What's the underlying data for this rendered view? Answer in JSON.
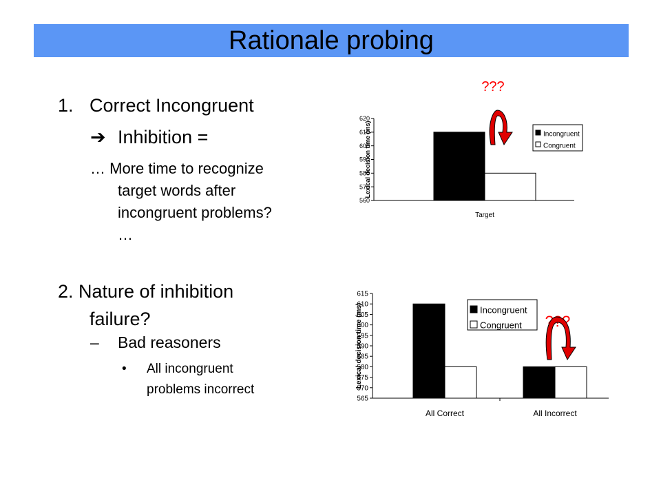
{
  "slide": {
    "title": "Rationale probing",
    "point1": {
      "number": "1.",
      "heading": "Correct Incongruent",
      "arrow": "➔",
      "subheading": "Inhibition =",
      "detail_lines": [
        "… More time to recognize",
        "target words after",
        "incongruent problems?",
        "…"
      ]
    },
    "point2": {
      "heading_lines": [
        "2. Nature of inhibition",
        "failure?"
      ],
      "dash": "–",
      "sub": "Bad reasoners",
      "bullet": "•",
      "bullet_lines": [
        "All incongruent",
        "problems incorrect"
      ]
    }
  },
  "colors": {
    "title_bar": "#5b96f5",
    "annotation": "#ff0000",
    "arrow_fill": "#e00000",
    "incongruent": "#000000",
    "congruent": "#ffffff"
  },
  "chart_data": [
    {
      "type": "bar",
      "categories": [
        "Target"
      ],
      "series": [
        {
          "name": "Incongruent",
          "values": [
            610
          ]
        },
        {
          "name": "Congruent",
          "values": [
            580
          ]
        }
      ],
      "ylabel": "Lexical decision time (ms)",
      "ylim": [
        560,
        620
      ],
      "yticks": [
        560,
        570,
        580,
        590,
        600,
        610,
        620
      ],
      "legend": "right",
      "annotation": "???"
    },
    {
      "type": "bar",
      "categories": [
        "All Correct",
        "All Incorrect"
      ],
      "series": [
        {
          "name": "Incongruent",
          "values": [
            610,
            580
          ]
        },
        {
          "name": "Congruent",
          "values": [
            580,
            580
          ]
        }
      ],
      "ylabel": "Lexical decision time (ms)",
      "ylim": [
        565,
        615
      ],
      "yticks": [
        565,
        570,
        575,
        580,
        585,
        590,
        595,
        600,
        605,
        610,
        615
      ],
      "legend": "top-center",
      "annotation": "???"
    }
  ]
}
